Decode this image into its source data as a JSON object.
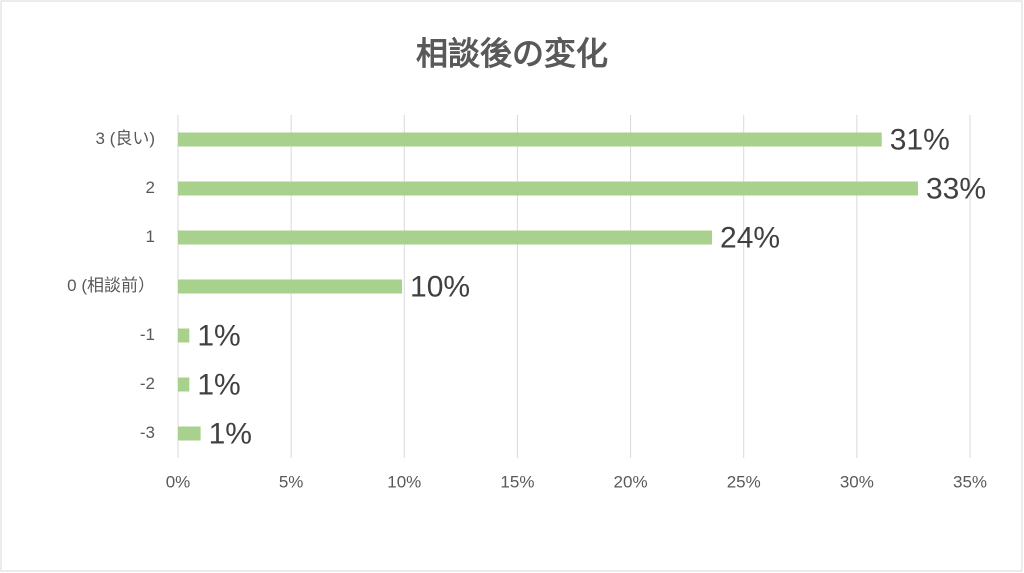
{
  "chart_data": {
    "type": "bar",
    "orientation": "horizontal",
    "title": "相談後の変化",
    "categories": [
      "3 (良い)",
      "2",
      "1",
      "0 (相談前）",
      "-1",
      "-2",
      "-3"
    ],
    "values": [
      31.1,
      32.7,
      23.6,
      9.9,
      0.5,
      0.5,
      1.0
    ],
    "value_labels": [
      "31%",
      "33%",
      "24%",
      "10%",
      "1%",
      "1%",
      "1%"
    ],
    "color": "#a9d18e",
    "xlim": [
      0,
      35
    ],
    "xticks": [
      {
        "value": 0,
        "label": "0%"
      },
      {
        "value": 5,
        "label": "5%"
      },
      {
        "value": 10,
        "label": "10%"
      },
      {
        "value": 15,
        "label": "15%"
      },
      {
        "value": 20,
        "label": "20%"
      },
      {
        "value": 25,
        "label": "25%"
      },
      {
        "value": 30,
        "label": "30%"
      },
      {
        "value": 35,
        "label": "35%"
      }
    ],
    "grid": true
  }
}
